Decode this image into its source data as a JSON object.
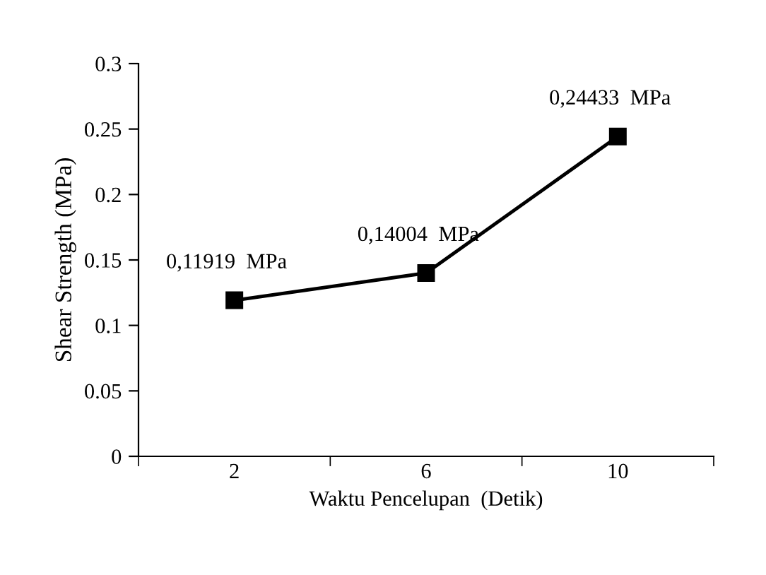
{
  "chart_data": {
    "type": "line",
    "xlabel": "Waktu Pencelupan  (Detik)",
    "ylabel": "Shear Strength (MPa)",
    "categories": [
      "2",
      "6",
      "10"
    ],
    "series": [
      {
        "color": "#000000",
        "values": [
          0.11919,
          0.14004,
          0.24433
        ],
        "value_labels": [
          "0,11919  MPa",
          "0,14004  MPa",
          "0,24433  MPa"
        ]
      }
    ],
    "ylim": [
      0,
      0.3
    ],
    "yticks": [
      0,
      {
        "value": 0.05,
        "label": "0.05"
      },
      {
        "value": 0.1,
        "label": "0.1"
      },
      {
        "value": 0.15,
        "label": "0.15"
      },
      {
        "value": 0.2,
        "label": "0.2"
      },
      {
        "value": 0.25,
        "label": "0.25"
      },
      {
        "value": 0.3,
        "label": "0.3"
      }
    ],
    "marker": "square",
    "line_style": "solid",
    "grid": false,
    "legend": false
  }
}
